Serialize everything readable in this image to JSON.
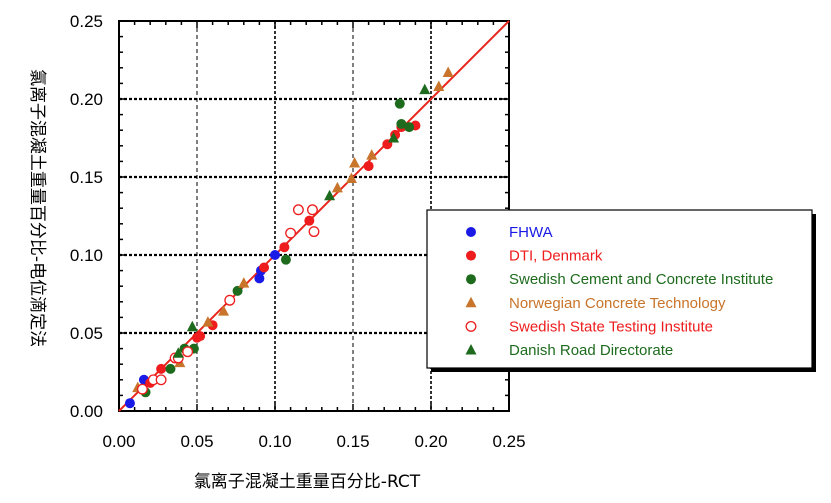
{
  "chart_data": {
    "type": "scatter",
    "title": "",
    "xlabel": "氯离子混凝土重量百分比-RCT",
    "ylabel": "氯离子混凝土重量百分比-电位滴定法",
    "xlim": [
      0,
      0.25
    ],
    "ylim": [
      0,
      0.25
    ],
    "x_ticks": [
      "0.00",
      "0.05",
      "0.10",
      "0.15",
      "0.20",
      "0.25"
    ],
    "y_ticks": [
      "0.00",
      "0.05",
      "0.10",
      "0.15",
      "0.20",
      "0.25"
    ],
    "grid": "dotted at 0.05 intervals",
    "legend_position": "right",
    "fit_line": {
      "color": "#e8261b",
      "x": [
        0,
        0.25
      ],
      "y": [
        0,
        0.25
      ]
    },
    "series": [
      {
        "name": "FHWA",
        "marker": "circle-filled",
        "color": "#1a1ae6",
        "x": [
          0.007,
          0.016,
          0.09,
          0.091,
          0.1
        ],
        "y": [
          0.005,
          0.02,
          0.085,
          0.09,
          0.1
        ]
      },
      {
        "name": "DTI, Denmark",
        "marker": "circle-filled",
        "color": "#ee1c1c",
        "x": [
          0.02,
          0.027,
          0.05,
          0.052,
          0.06,
          0.093,
          0.106,
          0.122,
          0.16,
          0.172,
          0.177,
          0.181,
          0.19
        ],
        "y": [
          0.018,
          0.027,
          0.047,
          0.048,
          0.055,
          0.092,
          0.105,
          0.122,
          0.157,
          0.171,
          0.177,
          0.182,
          0.183
        ]
      },
      {
        "name": "Swedish Cement and Concrete Institute",
        "marker": "circle-filled",
        "color": "#1e6b1e",
        "x": [
          0.017,
          0.033,
          0.042,
          0.048,
          0.076,
          0.107,
          0.18,
          0.181,
          0.186
        ],
        "y": [
          0.012,
          0.027,
          0.04,
          0.04,
          0.077,
          0.097,
          0.197,
          0.184,
          0.182
        ]
      },
      {
        "name": "Norwegian Concrete Technology",
        "marker": "triangle-filled",
        "color": "#c8742a",
        "x": [
          0.012,
          0.039,
          0.057,
          0.067,
          0.08,
          0.14,
          0.149,
          0.151,
          0.162,
          0.205,
          0.211
        ],
        "y": [
          0.015,
          0.031,
          0.057,
          0.064,
          0.082,
          0.143,
          0.149,
          0.159,
          0.164,
          0.208,
          0.217
        ]
      },
      {
        "name": "Swedish State Testing Institute",
        "marker": "circle-open",
        "color": "#ee1c1c",
        "x": [
          0.015,
          0.022,
          0.027,
          0.036,
          0.038,
          0.044,
          0.071,
          0.11,
          0.115,
          0.124,
          0.125
        ],
        "y": [
          0.014,
          0.02,
          0.02,
          0.034,
          0.034,
          0.038,
          0.071,
          0.114,
          0.129,
          0.129,
          0.115
        ]
      },
      {
        "name": "Danish Road Directorate",
        "marker": "triangle-filled",
        "color": "#1e6b1e",
        "x": [
          0.038,
          0.047,
          0.135,
          0.176,
          0.196
        ],
        "y": [
          0.037,
          0.054,
          0.138,
          0.175,
          0.206
        ]
      }
    ]
  }
}
